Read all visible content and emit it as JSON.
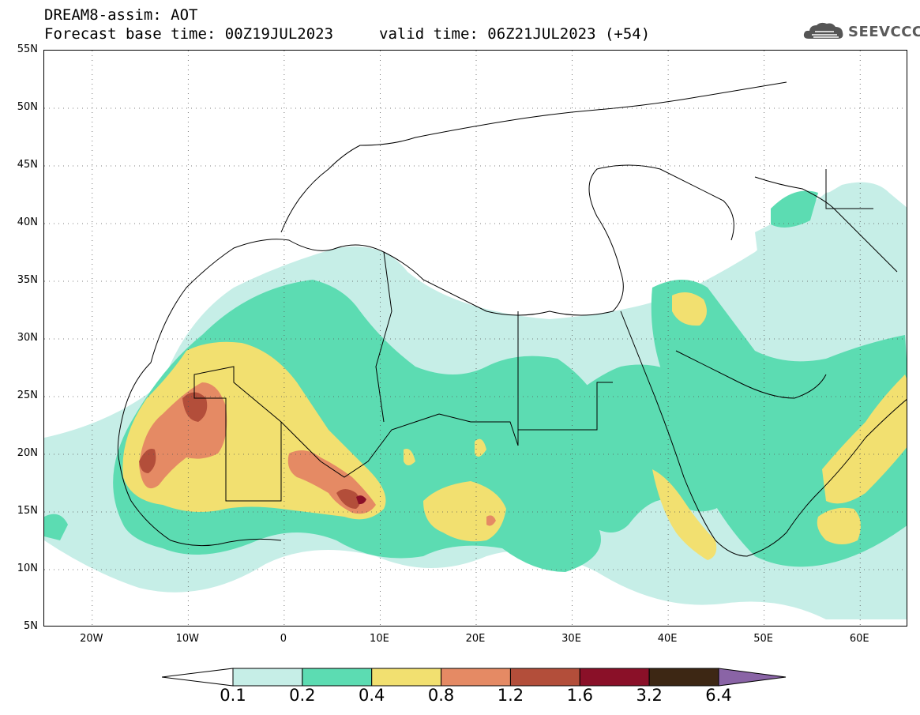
{
  "header": {
    "title": "DREAM8-assim: AOT",
    "base_time": "Forecast base time: 00Z19JUL2023",
    "valid_time": "valid time: 06Z21JUL2023 (+54)"
  },
  "logo": {
    "text": "SEEVCCC",
    "icon": "cloud-icon"
  },
  "map": {
    "lon_range": [
      -25,
      65
    ],
    "lat_range": [
      5,
      55
    ],
    "lat_ticks": [
      "55N",
      "50N",
      "45N",
      "40N",
      "35N",
      "30N",
      "25N",
      "20N",
      "15N",
      "10N",
      "5N"
    ],
    "lon_ticks": [
      "20W",
      "10W",
      "0",
      "10E",
      "20E",
      "30E",
      "40E",
      "50E",
      "60E"
    ],
    "colors": {
      "c1": "#c6eee7",
      "c2": "#5cdcb2",
      "c3": "#f2e070",
      "c4": "#e58a64",
      "c5": "#b34e3a",
      "c6": "#8a1028",
      "c7": "#3d2714",
      "c8": "#8a64a6"
    }
  },
  "colorbar": {
    "levels": [
      "0.1",
      "0.2",
      "0.4",
      "0.8",
      "1.2",
      "1.6",
      "3.2",
      "6.4"
    ],
    "colors": [
      "#c6eee7",
      "#5cdcb2",
      "#f2e070",
      "#e58a64",
      "#b34e3a",
      "#8a1028",
      "#3d2714"
    ],
    "over_color": "#8a64a6"
  }
}
